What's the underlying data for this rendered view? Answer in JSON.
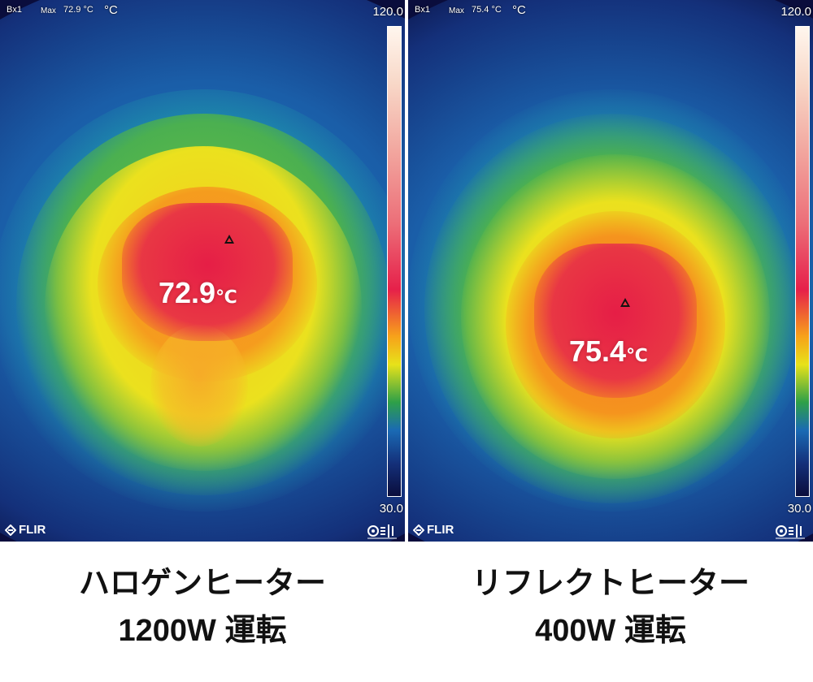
{
  "panels": [
    {
      "box_label": "Bx1",
      "max_label": "Max",
      "max_value": "72.9 °C",
      "unit": "°C",
      "scale_max": "120.0",
      "scale_min": "30.0",
      "spot_temp": "72.9",
      "spot_unit": "℃",
      "logo": "FLIR",
      "caption_line1": "ハロゲンヒーター",
      "caption_line2": "1200W 運転"
    },
    {
      "box_label": "Bx1",
      "max_label": "Max",
      "max_value": "75.4 °C",
      "unit": "°C",
      "scale_max": "120.0",
      "scale_min": "30.0",
      "spot_temp": "75.4",
      "spot_unit": "℃",
      "logo": "FLIR",
      "caption_line1": "リフレクトヒーター",
      "caption_line2": "400W 運転"
    }
  ],
  "palette": {
    "cold": "#0a0d3c",
    "blue": "#1a6ab4",
    "green": "#2ea048",
    "yellow": "#e7e21a",
    "orange": "#f7a21a",
    "red": "#e6204a",
    "white": "#fff6ee"
  }
}
